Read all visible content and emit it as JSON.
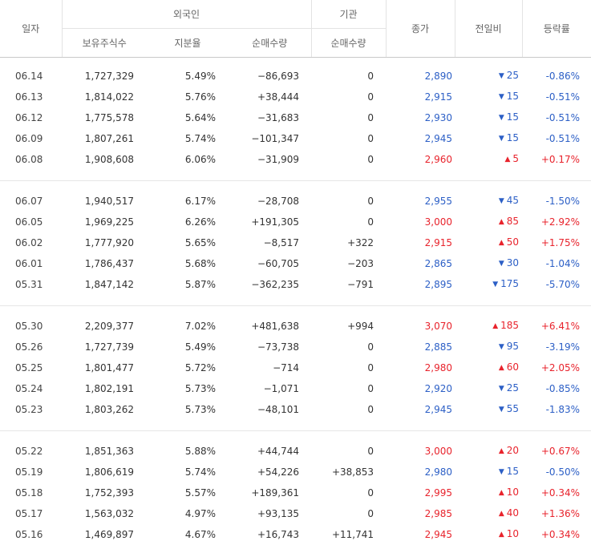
{
  "header": {
    "date": "일자",
    "foreign": "외국인",
    "institution": "기관",
    "close": "종가",
    "change": "전일비",
    "rate": "등락률",
    "holdings": "보유주식수",
    "share": "지분율",
    "foreign_net": "순매수량",
    "inst_net": "순매수량"
  },
  "groups": [
    [
      {
        "date": "06.14",
        "hold": "1,727,329",
        "share": "5.49%",
        "fnet": "−86,693",
        "inet": "0",
        "close": "2,890",
        "diff": "25",
        "dir": "down",
        "rate": "-0.86%"
      },
      {
        "date": "06.13",
        "hold": "1,814,022",
        "share": "5.76%",
        "fnet": "+38,444",
        "inet": "0",
        "close": "2,915",
        "diff": "15",
        "dir": "down",
        "rate": "-0.51%"
      },
      {
        "date": "06.12",
        "hold": "1,775,578",
        "share": "5.64%",
        "fnet": "−31,683",
        "inet": "0",
        "close": "2,930",
        "diff": "15",
        "dir": "down",
        "rate": "-0.51%"
      },
      {
        "date": "06.09",
        "hold": "1,807,261",
        "share": "5.74%",
        "fnet": "−101,347",
        "inet": "0",
        "close": "2,945",
        "diff": "15",
        "dir": "down",
        "rate": "-0.51%"
      },
      {
        "date": "06.08",
        "hold": "1,908,608",
        "share": "6.06%",
        "fnet": "−31,909",
        "inet": "0",
        "close": "2,960",
        "diff": "5",
        "dir": "up",
        "rate": "+0.17%"
      }
    ],
    [
      {
        "date": "06.07",
        "hold": "1,940,517",
        "share": "6.17%",
        "fnet": "−28,708",
        "inet": "0",
        "close": "2,955",
        "diff": "45",
        "dir": "down",
        "rate": "-1.50%"
      },
      {
        "date": "06.05",
        "hold": "1,969,225",
        "share": "6.26%",
        "fnet": "+191,305",
        "inet": "0",
        "close": "3,000",
        "diff": "85",
        "dir": "up",
        "rate": "+2.92%"
      },
      {
        "date": "06.02",
        "hold": "1,777,920",
        "share": "5.65%",
        "fnet": "−8,517",
        "inet": "+322",
        "close": "2,915",
        "diff": "50",
        "dir": "up",
        "rate": "+1.75%"
      },
      {
        "date": "06.01",
        "hold": "1,786,437",
        "share": "5.68%",
        "fnet": "−60,705",
        "inet": "−203",
        "close": "2,865",
        "diff": "30",
        "dir": "down",
        "rate": "-1.04%"
      },
      {
        "date": "05.31",
        "hold": "1,847,142",
        "share": "5.87%",
        "fnet": "−362,235",
        "inet": "−791",
        "close": "2,895",
        "diff": "175",
        "dir": "down",
        "rate": "-5.70%"
      }
    ],
    [
      {
        "date": "05.30",
        "hold": "2,209,377",
        "share": "7.02%",
        "fnet": "+481,638",
        "inet": "+994",
        "close": "3,070",
        "diff": "185",
        "dir": "up",
        "rate": "+6.41%"
      },
      {
        "date": "05.26",
        "hold": "1,727,739",
        "share": "5.49%",
        "fnet": "−73,738",
        "inet": "0",
        "close": "2,885",
        "diff": "95",
        "dir": "down",
        "rate": "-3.19%"
      },
      {
        "date": "05.25",
        "hold": "1,801,477",
        "share": "5.72%",
        "fnet": "−714",
        "inet": "0",
        "close": "2,980",
        "diff": "60",
        "dir": "up",
        "rate": "+2.05%"
      },
      {
        "date": "05.24",
        "hold": "1,802,191",
        "share": "5.73%",
        "fnet": "−1,071",
        "inet": "0",
        "close": "2,920",
        "diff": "25",
        "dir": "down",
        "rate": "-0.85%"
      },
      {
        "date": "05.23",
        "hold": "1,803,262",
        "share": "5.73%",
        "fnet": "−48,101",
        "inet": "0",
        "close": "2,945",
        "diff": "55",
        "dir": "down",
        "rate": "-1.83%"
      }
    ],
    [
      {
        "date": "05.22",
        "hold": "1,851,363",
        "share": "5.88%",
        "fnet": "+44,744",
        "inet": "0",
        "close": "3,000",
        "diff": "20",
        "dir": "up",
        "rate": "+0.67%"
      },
      {
        "date": "05.19",
        "hold": "1,806,619",
        "share": "5.74%",
        "fnet": "+54,226",
        "inet": "+38,853",
        "close": "2,980",
        "diff": "15",
        "dir": "down",
        "rate": "-0.50%"
      },
      {
        "date": "05.18",
        "hold": "1,752,393",
        "share": "5.57%",
        "fnet": "+189,361",
        "inet": "0",
        "close": "2,995",
        "diff": "10",
        "dir": "up",
        "rate": "+0.34%"
      },
      {
        "date": "05.17",
        "hold": "1,563,032",
        "share": "4.97%",
        "fnet": "+93,135",
        "inet": "0",
        "close": "2,985",
        "diff": "40",
        "dir": "up",
        "rate": "+1.36%"
      },
      {
        "date": "05.16",
        "hold": "1,469,897",
        "share": "4.67%",
        "fnet": "+16,743",
        "inet": "+11,741",
        "close": "2,945",
        "diff": "10",
        "dir": "up",
        "rate": "+0.34%"
      }
    ]
  ],
  "colors": {
    "up": "#e8232c",
    "down": "#2c5fc6",
    "text": "#333333"
  },
  "icons": {
    "up": "up-triangle-icon",
    "down": "down-triangle-icon"
  }
}
